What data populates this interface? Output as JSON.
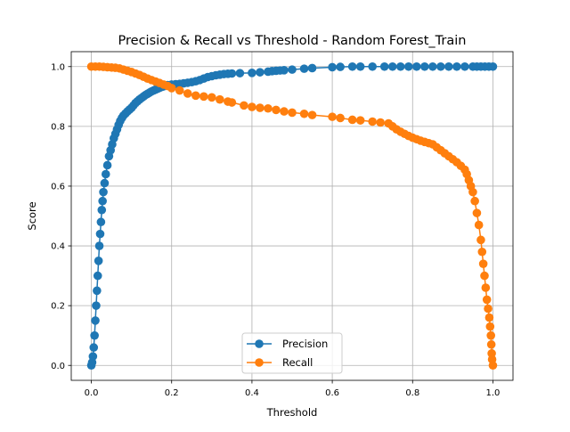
{
  "chart_data": {
    "type": "line",
    "title": "Precision & Recall vs Threshold - Random Forest_Train",
    "xlabel": "Threshold",
    "ylabel": "Score",
    "xlim": [
      -0.05,
      1.05
    ],
    "ylim": [
      -0.05,
      1.05
    ],
    "xticks": [
      0.0,
      0.2,
      0.4,
      0.6,
      0.8,
      1.0
    ],
    "xtick_labels": [
      "0.0",
      "0.2",
      "0.4",
      "0.6",
      "0.8",
      "1.0"
    ],
    "yticks": [
      0.0,
      0.2,
      0.4,
      0.6,
      0.8,
      1.0
    ],
    "ytick_labels": [
      "0.0",
      "0.2",
      "0.4",
      "0.6",
      "0.8",
      "1.0"
    ],
    "grid": true,
    "legend_position": "lower center",
    "marker": "circle",
    "series": [
      {
        "name": "Precision",
        "color": "#1f77b4",
        "points": [
          [
            0.0,
            0.0
          ],
          [
            0.002,
            0.01
          ],
          [
            0.004,
            0.03
          ],
          [
            0.006,
            0.06
          ],
          [
            0.008,
            0.1
          ],
          [
            0.01,
            0.15
          ],
          [
            0.012,
            0.2
          ],
          [
            0.014,
            0.25
          ],
          [
            0.016,
            0.3
          ],
          [
            0.018,
            0.35
          ],
          [
            0.02,
            0.4
          ],
          [
            0.022,
            0.44
          ],
          [
            0.024,
            0.48
          ],
          [
            0.026,
            0.52
          ],
          [
            0.028,
            0.55
          ],
          [
            0.03,
            0.58
          ],
          [
            0.033,
            0.61
          ],
          [
            0.036,
            0.64
          ],
          [
            0.04,
            0.67
          ],
          [
            0.044,
            0.7
          ],
          [
            0.048,
            0.72
          ],
          [
            0.052,
            0.74
          ],
          [
            0.056,
            0.76
          ],
          [
            0.06,
            0.775
          ],
          [
            0.064,
            0.79
          ],
          [
            0.068,
            0.805
          ],
          [
            0.072,
            0.818
          ],
          [
            0.076,
            0.828
          ],
          [
            0.08,
            0.836
          ],
          [
            0.085,
            0.843
          ],
          [
            0.09,
            0.85
          ],
          [
            0.095,
            0.856
          ],
          [
            0.1,
            0.862
          ],
          [
            0.105,
            0.87
          ],
          [
            0.11,
            0.878
          ],
          [
            0.115,
            0.884
          ],
          [
            0.12,
            0.89
          ],
          [
            0.125,
            0.895
          ],
          [
            0.13,
            0.9
          ],
          [
            0.135,
            0.905
          ],
          [
            0.14,
            0.909
          ],
          [
            0.145,
            0.913
          ],
          [
            0.15,
            0.917
          ],
          [
            0.155,
            0.92
          ],
          [
            0.16,
            0.923
          ],
          [
            0.165,
            0.926
          ],
          [
            0.17,
            0.929
          ],
          [
            0.175,
            0.932
          ],
          [
            0.18,
            0.934
          ],
          [
            0.185,
            0.936
          ],
          [
            0.19,
            0.938
          ],
          [
            0.2,
            0.94
          ],
          [
            0.21,
            0.941
          ],
          [
            0.22,
            0.942
          ],
          [
            0.23,
            0.944
          ],
          [
            0.24,
            0.946
          ],
          [
            0.25,
            0.948
          ],
          [
            0.26,
            0.951
          ],
          [
            0.27,
            0.955
          ],
          [
            0.28,
            0.96
          ],
          [
            0.29,
            0.965
          ],
          [
            0.3,
            0.968
          ],
          [
            0.31,
            0.971
          ],
          [
            0.32,
            0.973
          ],
          [
            0.33,
            0.975
          ],
          [
            0.34,
            0.976
          ],
          [
            0.35,
            0.977
          ],
          [
            0.37,
            0.978
          ],
          [
            0.4,
            0.979
          ],
          [
            0.42,
            0.981
          ],
          [
            0.44,
            0.983
          ],
          [
            0.45,
            0.985
          ],
          [
            0.46,
            0.986
          ],
          [
            0.47,
            0.987
          ],
          [
            0.48,
            0.988
          ],
          [
            0.5,
            0.99
          ],
          [
            0.53,
            0.993
          ],
          [
            0.55,
            0.995
          ],
          [
            0.6,
            0.998
          ],
          [
            0.62,
            0.999
          ],
          [
            0.65,
            1.0
          ],
          [
            0.67,
            1.0
          ],
          [
            0.7,
            1.0
          ],
          [
            0.73,
            1.0
          ],
          [
            0.75,
            1.0
          ],
          [
            0.77,
            1.0
          ],
          [
            0.79,
            1.0
          ],
          [
            0.81,
            1.0
          ],
          [
            0.83,
            1.0
          ],
          [
            0.85,
            1.0
          ],
          [
            0.87,
            1.0
          ],
          [
            0.89,
            1.0
          ],
          [
            0.91,
            1.0
          ],
          [
            0.93,
            1.0
          ],
          [
            0.95,
            1.0
          ],
          [
            0.96,
            1.0
          ],
          [
            0.97,
            1.0
          ],
          [
            0.98,
            1.0
          ],
          [
            0.99,
            1.0
          ],
          [
            1.0,
            1.0
          ]
        ]
      },
      {
        "name": "Recall",
        "color": "#ff7f0e",
        "points": [
          [
            0.0,
            1.0
          ],
          [
            0.01,
            1.0
          ],
          [
            0.02,
            1.0
          ],
          [
            0.03,
            0.999
          ],
          [
            0.04,
            0.998
          ],
          [
            0.05,
            0.997
          ],
          [
            0.06,
            0.996
          ],
          [
            0.07,
            0.994
          ],
          [
            0.08,
            0.99
          ],
          [
            0.09,
            0.986
          ],
          [
            0.1,
            0.982
          ],
          [
            0.11,
            0.977
          ],
          [
            0.12,
            0.972
          ],
          [
            0.13,
            0.966
          ],
          [
            0.14,
            0.96
          ],
          [
            0.15,
            0.955
          ],
          [
            0.16,
            0.95
          ],
          [
            0.17,
            0.945
          ],
          [
            0.18,
            0.94
          ],
          [
            0.19,
            0.935
          ],
          [
            0.2,
            0.928
          ],
          [
            0.22,
            0.92
          ],
          [
            0.24,
            0.91
          ],
          [
            0.26,
            0.903
          ],
          [
            0.28,
            0.9
          ],
          [
            0.3,
            0.897
          ],
          [
            0.32,
            0.89
          ],
          [
            0.34,
            0.883
          ],
          [
            0.35,
            0.88
          ],
          [
            0.38,
            0.87
          ],
          [
            0.4,
            0.865
          ],
          [
            0.42,
            0.862
          ],
          [
            0.44,
            0.86
          ],
          [
            0.46,
            0.855
          ],
          [
            0.48,
            0.85
          ],
          [
            0.5,
            0.846
          ],
          [
            0.53,
            0.842
          ],
          [
            0.55,
            0.838
          ],
          [
            0.6,
            0.832
          ],
          [
            0.62,
            0.828
          ],
          [
            0.65,
            0.822
          ],
          [
            0.67,
            0.82
          ],
          [
            0.7,
            0.816
          ],
          [
            0.72,
            0.813
          ],
          [
            0.74,
            0.81
          ],
          [
            0.75,
            0.8
          ],
          [
            0.76,
            0.79
          ],
          [
            0.77,
            0.782
          ],
          [
            0.78,
            0.775
          ],
          [
            0.79,
            0.768
          ],
          [
            0.8,
            0.762
          ],
          [
            0.81,
            0.757
          ],
          [
            0.82,
            0.752
          ],
          [
            0.83,
            0.748
          ],
          [
            0.84,
            0.744
          ],
          [
            0.85,
            0.74
          ],
          [
            0.86,
            0.73
          ],
          [
            0.87,
            0.72
          ],
          [
            0.88,
            0.71
          ],
          [
            0.89,
            0.7
          ],
          [
            0.9,
            0.69
          ],
          [
            0.91,
            0.68
          ],
          [
            0.92,
            0.668
          ],
          [
            0.93,
            0.655
          ],
          [
            0.935,
            0.64
          ],
          [
            0.94,
            0.62
          ],
          [
            0.945,
            0.6
          ],
          [
            0.95,
            0.58
          ],
          [
            0.955,
            0.55
          ],
          [
            0.96,
            0.51
          ],
          [
            0.965,
            0.47
          ],
          [
            0.97,
            0.42
          ],
          [
            0.973,
            0.38
          ],
          [
            0.976,
            0.34
          ],
          [
            0.979,
            0.3
          ],
          [
            0.982,
            0.26
          ],
          [
            0.985,
            0.22
          ],
          [
            0.988,
            0.19
          ],
          [
            0.991,
            0.16
          ],
          [
            0.993,
            0.13
          ],
          [
            0.995,
            0.1
          ],
          [
            0.996,
            0.07
          ],
          [
            0.997,
            0.04
          ],
          [
            0.998,
            0.02
          ],
          [
            1.0,
            0.0
          ]
        ]
      }
    ]
  }
}
